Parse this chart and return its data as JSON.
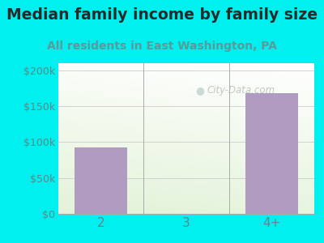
{
  "title": "Median family income by family size",
  "subtitle": "All residents in East Washington, PA",
  "categories": [
    "2",
    "3",
    "4+"
  ],
  "values": [
    93000,
    0,
    168000
  ],
  "bar_color": "#b09cc0",
  "ylim": [
    0,
    210000
  ],
  "yticks": [
    0,
    50000,
    100000,
    150000,
    200000
  ],
  "ytick_labels": [
    "$0",
    "$50k",
    "$100k",
    "$150k",
    "$200k"
  ],
  "bg_outer": "#00efef",
  "title_color": "#2a2a2a",
  "subtitle_color": "#5a9a9a",
  "tick_color": "#5a8a8a",
  "watermark": "City-Data.com",
  "title_fontsize": 13.5,
  "subtitle_fontsize": 10,
  "grad_color_topleft": "#e8f5e0",
  "grad_color_bottomright": "#f8fff8",
  "grad_color_white": "#ffffff"
}
